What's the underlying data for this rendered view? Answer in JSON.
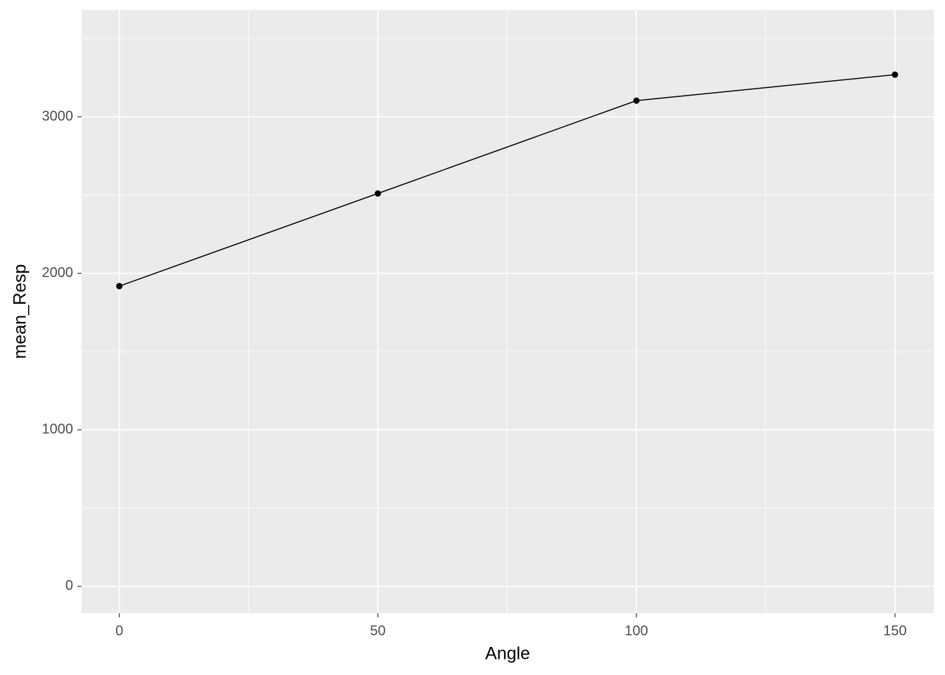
{
  "chart_data": {
    "type": "line",
    "x_label": "Angle",
    "y_label": "mean_Resp",
    "x": [
      0,
      50,
      100,
      150
    ],
    "series": [
      {
        "color": "#000000",
        "values": [
          1918,
          2510,
          3103,
          3269
        ]
      }
    ],
    "xlim": [
      -7.3,
      157.5
    ],
    "ylim": [
      -171,
      3683
    ],
    "xticks": [
      0,
      50,
      100,
      150
    ],
    "yticks": [
      0,
      1000,
      2000,
      3000
    ],
    "x_minor_grid": [
      25,
      75,
      125
    ],
    "y_minor_grid": [
      500,
      1500,
      2500,
      3500
    ],
    "grid": true,
    "panel_color": "#ebebeb",
    "grid_color": "#ffffff"
  }
}
